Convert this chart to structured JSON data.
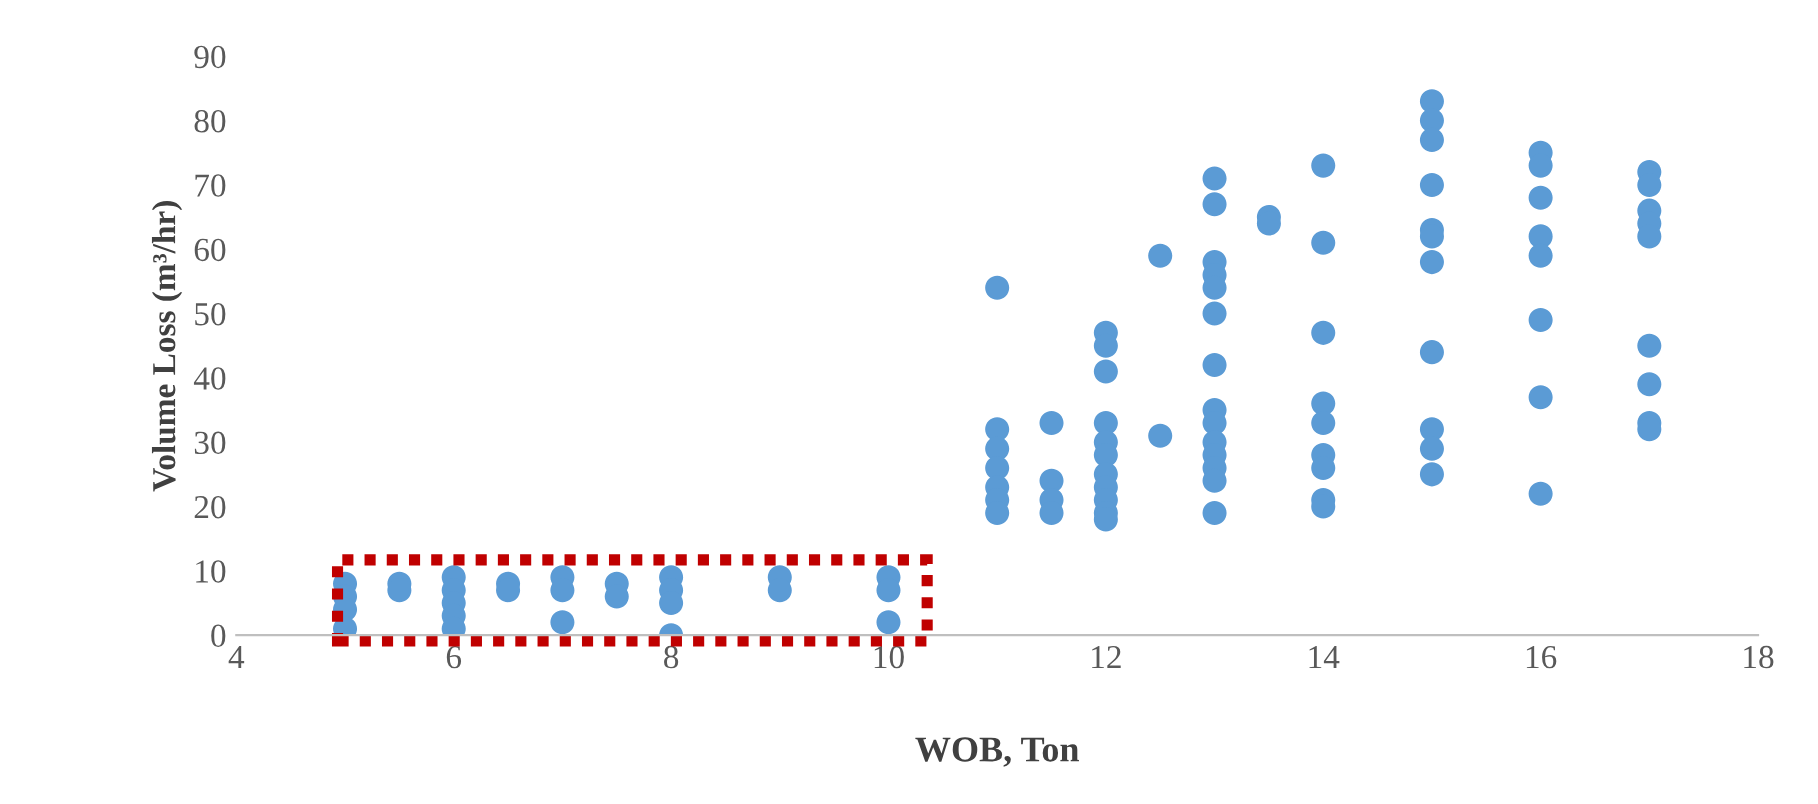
{
  "chart_data": {
    "type": "scatter",
    "xlabel": "WOB, Ton",
    "ylabel": "Volume Loss (m³/hr)",
    "x": [
      5,
      5,
      5,
      5,
      5.5,
      5.5,
      6,
      6,
      6,
      6,
      6,
      6.5,
      6.5,
      7,
      7,
      7,
      7.5,
      7.5,
      8,
      8,
      8,
      8,
      9,
      9,
      10,
      10,
      10,
      11,
      11,
      11,
      11,
      11,
      11,
      11,
      11.5,
      11.5,
      11.5,
      11.5,
      12,
      12,
      12,
      12,
      12,
      12,
      12,
      12,
      12,
      12,
      12,
      12.5,
      12.5,
      13,
      13,
      13,
      13,
      13,
      13,
      13,
      13,
      13,
      13,
      13,
      13,
      13,
      13,
      13.5,
      13.5,
      14,
      14,
      14,
      14,
      14,
      14,
      14,
      14,
      14,
      15,
      15,
      15,
      15,
      15,
      15,
      15,
      15,
      15,
      15,
      15,
      16,
      16,
      16,
      16,
      16,
      16,
      16,
      16,
      17,
      17,
      17,
      17,
      17,
      17,
      17,
      17,
      17
    ],
    "series": [
      {
        "color": "#5b9bd5",
        "values": [
          8,
          6,
          4,
          1,
          8,
          7,
          9,
          7,
          5,
          3,
          1,
          8,
          7,
          9,
          7,
          2,
          8,
          6,
          9,
          7,
          5,
          0,
          9,
          7,
          9,
          7,
          2,
          54,
          32,
          29,
          26,
          23,
          21,
          19,
          33,
          24,
          21,
          19,
          47,
          45,
          41,
          33,
          30,
          28,
          25,
          23,
          21,
          19,
          18,
          59,
          31,
          71,
          67,
          58,
          56,
          54,
          50,
          42,
          35,
          33,
          30,
          28,
          26,
          24,
          19,
          65,
          64,
          73,
          61,
          47,
          36,
          33,
          28,
          26,
          21,
          20,
          83,
          80,
          77,
          70,
          63,
          62,
          58,
          44,
          32,
          29,
          25,
          75,
          73,
          68,
          62,
          59,
          49,
          37,
          22,
          72,
          70,
          66,
          64,
          62,
          45,
          39,
          33,
          32
        ]
      }
    ],
    "xlim": [
      4,
      18
    ],
    "xticks": [
      4,
      6,
      8,
      10,
      12,
      14,
      16,
      18
    ],
    "ylim": [
      0,
      90
    ],
    "yticks": [
      0,
      10,
      20,
      30,
      40,
      50,
      60,
      70,
      80,
      90
    ],
    "marker": "circle",
    "grid": false,
    "legend": false
  }
}
